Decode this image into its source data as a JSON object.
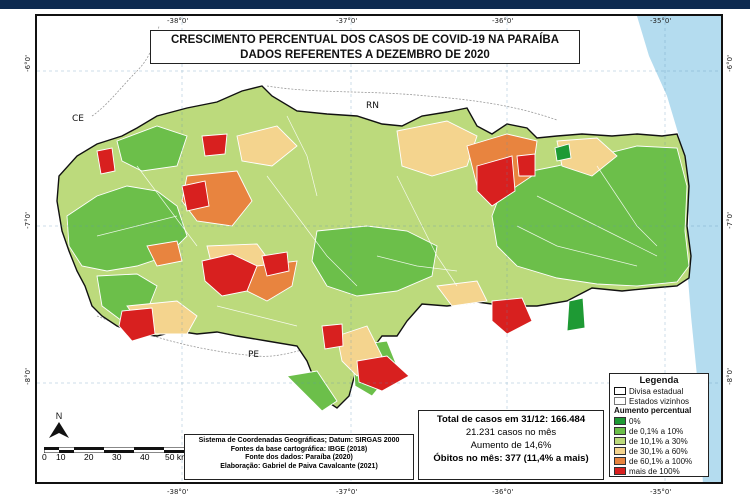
{
  "title": {
    "line1": "CRESCIMENTO PERCENTUAL DOS CASOS DE COVID-19 NA PARAÍBA",
    "line2": "DADOS REFERENTES A DEZEMBRO DE 2020"
  },
  "coordinates": {
    "top": [
      "-38°0'",
      "-37°0'",
      "-36°0'",
      "-35°0'"
    ],
    "bottom": [
      "-38°0'",
      "-37°0'",
      "-36°0'",
      "-35°0'"
    ],
    "left": [
      "-6°0'",
      "-7°0'",
      "-8°0'"
    ],
    "right": [
      "-6°0'",
      "-7°0'",
      "-8°0'"
    ]
  },
  "neighbor_labels": {
    "ce": "CE",
    "rn": "RN",
    "pe": "PE"
  },
  "legend": {
    "title": "Legenda",
    "state_border": "Divisa estadual",
    "neighbors": "Estados vizinhos",
    "increase_title": "Aumento percentual",
    "classes": [
      {
        "label": "0%",
        "color": "#1e9a34"
      },
      {
        "label": "de 0,1% a 10%",
        "color": "#6cbf4a"
      },
      {
        "label": "de 10,1% a 30%",
        "color": "#bcda7c"
      },
      {
        "label": "de 30,1% a 60%",
        "color": "#f4d48e"
      },
      {
        "label": "de 60,1% a 100%",
        "color": "#e8843f"
      },
      {
        "label": "mais de 100%",
        "color": "#d8201f"
      }
    ]
  },
  "stats": {
    "total": "Total de casos em 31/12: 166.484",
    "month_cases": "21.231 casos no mês",
    "increase": "Aumento de 14,6%",
    "deaths": "Óbitos no mês: 377 (11,4% a mais)"
  },
  "credits": {
    "crs": "Sistema de Coordenadas Geográficas; Datum: SIRGAS 2000",
    "base": "Fontes da base cartográfica: IBGE (2018)",
    "data_source": "Fonte dos dados: Paraíba (2020)",
    "author": "Elaboração: Gabriel de Paiva Cavalcante (2021)"
  },
  "north": "N",
  "scale": {
    "ticks": [
      "0",
      "10",
      "20",
      "30",
      "40",
      "50 km"
    ]
  },
  "colors": {
    "ocean": "#b4dcef",
    "water_edge": "#8cc2de",
    "neighbor_land": "#ffffff",
    "top_strip": "#0d2a50"
  }
}
